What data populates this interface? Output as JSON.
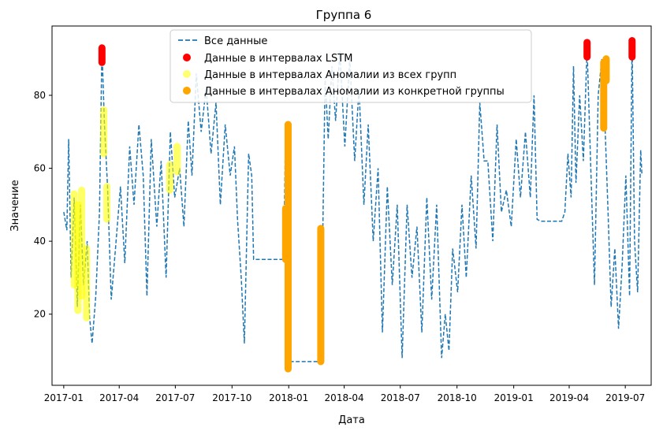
{
  "chart_data": {
    "type": "line",
    "title": "Группа 6",
    "xlabel": "Дата",
    "ylabel": "Значение",
    "x_range": [
      "2016-12-13",
      "2019-08-12"
    ],
    "ylim": [
      0.5,
      99
    ],
    "x_ticks": [
      {
        "date": "2017-01-01",
        "label": "2017-01"
      },
      {
        "date": "2017-04-01",
        "label": "2017-04"
      },
      {
        "date": "2017-07-01",
        "label": "2017-07"
      },
      {
        "date": "2017-10-01",
        "label": "2017-10"
      },
      {
        "date": "2018-01-01",
        "label": "2018-01"
      },
      {
        "date": "2018-04-01",
        "label": "2018-04"
      },
      {
        "date": "2018-07-01",
        "label": "2018-07"
      },
      {
        "date": "2018-10-01",
        "label": "2018-10"
      },
      {
        "date": "2019-01-01",
        "label": "2019-01"
      },
      {
        "date": "2019-04-01",
        "label": "2019-04"
      },
      {
        "date": "2019-07-01",
        "label": "2019-07"
      }
    ],
    "y_ticks": [
      20,
      40,
      60,
      80
    ],
    "grid": false,
    "legend_position": "top-center",
    "series": [
      {
        "name": "Все данные",
        "style": "dashed-line",
        "color": "#1f77b4",
        "points": [
          [
            "2017-01-01",
            48
          ],
          [
            "2017-01-06",
            43
          ],
          [
            "2017-01-09",
            68
          ],
          [
            "2017-01-13",
            30
          ],
          [
            "2017-01-18",
            52
          ],
          [
            "2017-01-23",
            22
          ],
          [
            "2017-01-28",
            50
          ],
          [
            "2017-02-02",
            28
          ],
          [
            "2017-02-08",
            40
          ],
          [
            "2017-02-12",
            19
          ],
          [
            "2017-02-16",
            12
          ],
          [
            "2017-02-22",
            25
          ],
          [
            "2017-02-28",
            48
          ],
          [
            "2017-03-04",
            93
          ],
          [
            "2017-03-08",
            72
          ],
          [
            "2017-03-13",
            55
          ],
          [
            "2017-03-19",
            24
          ],
          [
            "2017-03-26",
            38
          ],
          [
            "2017-04-03",
            55
          ],
          [
            "2017-04-10",
            34
          ],
          [
            "2017-04-18",
            66
          ],
          [
            "2017-04-25",
            50
          ],
          [
            "2017-05-03",
            72
          ],
          [
            "2017-05-10",
            58
          ],
          [
            "2017-05-16",
            25
          ],
          [
            "2017-05-23",
            68
          ],
          [
            "2017-06-01",
            44
          ],
          [
            "2017-06-08",
            62
          ],
          [
            "2017-06-16",
            30
          ],
          [
            "2017-06-23",
            70
          ],
          [
            "2017-06-30",
            52
          ],
          [
            "2017-07-08",
            60
          ],
          [
            "2017-07-15",
            44
          ],
          [
            "2017-07-22",
            73
          ],
          [
            "2017-07-28",
            58
          ],
          [
            "2017-08-04",
            86
          ],
          [
            "2017-08-12",
            70
          ],
          [
            "2017-08-20",
            82
          ],
          [
            "2017-08-28",
            64
          ],
          [
            "2017-09-05",
            78
          ],
          [
            "2017-09-12",
            50
          ],
          [
            "2017-09-20",
            72
          ],
          [
            "2017-09-28",
            58
          ],
          [
            "2017-10-05",
            66
          ],
          [
            "2017-10-10",
            46
          ],
          [
            "2017-10-16",
            30
          ],
          [
            "2017-10-21",
            12
          ],
          [
            "2017-10-28",
            64
          ],
          [
            "2017-11-02",
            58
          ],
          [
            "2017-11-05",
            35
          ],
          [
            "2017-11-20",
            35
          ],
          [
            "2017-12-10",
            35
          ],
          [
            "2017-12-24",
            35
          ],
          [
            "2017-12-27",
            72
          ],
          [
            "2017-12-30",
            28
          ],
          [
            "2018-01-02",
            5
          ],
          [
            "2018-01-05",
            7
          ],
          [
            "2018-01-20",
            7
          ],
          [
            "2018-02-15",
            7
          ],
          [
            "2018-02-22",
            7
          ],
          [
            "2018-02-25",
            40
          ],
          [
            "2018-03-01",
            85
          ],
          [
            "2018-03-06",
            68
          ],
          [
            "2018-03-12",
            88
          ],
          [
            "2018-03-18",
            73
          ],
          [
            "2018-03-25",
            92
          ],
          [
            "2018-04-02",
            66
          ],
          [
            "2018-04-10",
            90
          ],
          [
            "2018-04-18",
            62
          ],
          [
            "2018-04-25",
            82
          ],
          [
            "2018-05-03",
            50
          ],
          [
            "2018-05-10",
            72
          ],
          [
            "2018-05-18",
            40
          ],
          [
            "2018-05-26",
            60
          ],
          [
            "2018-06-02",
            15
          ],
          [
            "2018-06-10",
            55
          ],
          [
            "2018-06-18",
            28
          ],
          [
            "2018-06-26",
            50
          ],
          [
            "2018-07-04",
            8
          ],
          [
            "2018-07-12",
            50
          ],
          [
            "2018-07-20",
            30
          ],
          [
            "2018-07-28",
            44
          ],
          [
            "2018-08-05",
            15
          ],
          [
            "2018-08-13",
            52
          ],
          [
            "2018-08-21",
            24
          ],
          [
            "2018-08-29",
            50
          ],
          [
            "2018-09-06",
            8
          ],
          [
            "2018-09-12",
            20
          ],
          [
            "2018-09-18",
            10
          ],
          [
            "2018-09-24",
            38
          ],
          [
            "2018-10-02",
            26
          ],
          [
            "2018-10-09",
            50
          ],
          [
            "2018-10-16",
            30
          ],
          [
            "2018-10-24",
            58
          ],
          [
            "2018-11-01",
            38
          ],
          [
            "2018-11-07",
            78
          ],
          [
            "2018-11-14",
            62
          ],
          [
            "2018-11-20",
            62
          ],
          [
            "2018-11-28",
            40
          ],
          [
            "2018-12-05",
            72
          ],
          [
            "2018-12-12",
            48
          ],
          [
            "2018-12-20",
            54
          ],
          [
            "2018-12-28",
            44
          ],
          [
            "2019-01-05",
            68
          ],
          [
            "2019-01-12",
            52
          ],
          [
            "2019-01-20",
            70
          ],
          [
            "2019-01-28",
            52
          ],
          [
            "2019-02-03",
            80
          ],
          [
            "2019-02-08",
            46
          ],
          [
            "2019-02-14",
            45.5
          ],
          [
            "2019-03-20",
            45.5
          ],
          [
            "2019-03-25",
            48
          ],
          [
            "2019-03-30",
            64
          ],
          [
            "2019-04-04",
            52
          ],
          [
            "2019-04-08",
            88
          ],
          [
            "2019-04-12",
            56
          ],
          [
            "2019-04-18",
            80
          ],
          [
            "2019-04-24",
            62
          ],
          [
            "2019-04-30",
            93
          ],
          [
            "2019-05-06",
            60
          ],
          [
            "2019-05-12",
            28
          ],
          [
            "2019-05-18",
            80
          ],
          [
            "2019-05-24",
            90
          ],
          [
            "2019-05-29",
            72
          ],
          [
            "2019-06-03",
            48
          ],
          [
            "2019-06-08",
            22
          ],
          [
            "2019-06-14",
            38
          ],
          [
            "2019-06-20",
            16
          ],
          [
            "2019-06-26",
            34
          ],
          [
            "2019-07-02",
            58
          ],
          [
            "2019-07-08",
            25
          ],
          [
            "2019-07-12",
            95
          ],
          [
            "2019-07-16",
            40
          ],
          [
            "2019-07-21",
            26
          ],
          [
            "2019-07-26",
            65
          ],
          [
            "2019-07-28",
            58
          ]
        ]
      },
      {
        "name": "Данные в интервалах LSTM",
        "style": "marker-column",
        "color": "#ff0000",
        "columns": [
          {
            "date": "2017-03-04",
            "ymin": 89,
            "ymax": 93
          },
          {
            "date": "2019-04-30",
            "ymin": 90.5,
            "ymax": 94.5
          },
          {
            "date": "2019-07-12",
            "ymin": 90.5,
            "ymax": 95
          }
        ]
      },
      {
        "name": "Данные в интервалах Аномалии из всех групп",
        "style": "marker-column",
        "color": "#ffff00",
        "columns": [
          {
            "date": "2017-01-18",
            "ymin": 28,
            "ymax": 53
          },
          {
            "date": "2017-01-24",
            "ymin": 21,
            "ymax": 50
          },
          {
            "date": "2017-01-30",
            "ymin": 25,
            "ymax": 54
          },
          {
            "date": "2017-02-07",
            "ymin": 19,
            "ymax": 38
          },
          {
            "date": "2017-03-07",
            "ymin": 64,
            "ymax": 76
          },
          {
            "date": "2017-03-12",
            "ymin": 46,
            "ymax": 55
          },
          {
            "date": "2017-06-22",
            "ymin": 54,
            "ymax": 61
          },
          {
            "date": "2017-07-04",
            "ymin": 59,
            "ymax": 66
          }
        ]
      },
      {
        "name": "Данные в интервалах Аномалии из конкретной группы",
        "style": "marker-column",
        "color": "#ffa500",
        "columns": [
          {
            "date": "2017-12-27",
            "ymin": 35,
            "ymax": 49
          },
          {
            "date": "2017-12-31",
            "ymin": 5,
            "ymax": 72
          },
          {
            "date": "2018-02-22",
            "ymin": 7,
            "ymax": 43.5
          },
          {
            "date": "2019-05-27",
            "ymin": 71,
            "ymax": 89
          },
          {
            "date": "2019-05-31",
            "ymin": 84,
            "ymax": 90
          }
        ]
      }
    ]
  }
}
